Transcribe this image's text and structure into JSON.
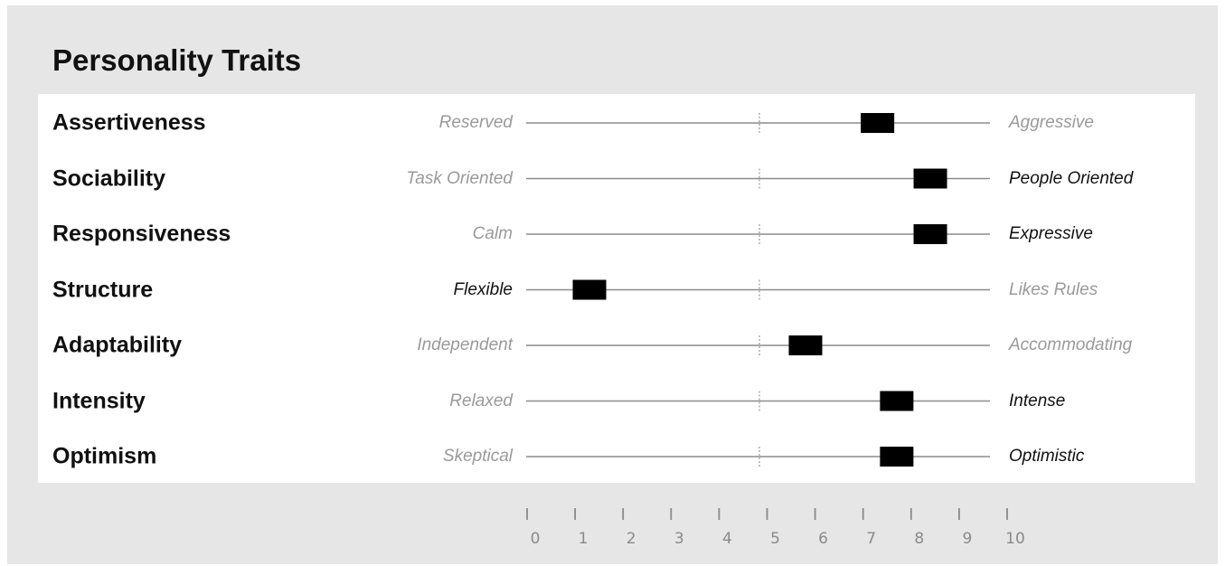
{
  "title": "Personality Traits",
  "chart_data": {
    "type": "bar",
    "title": "Personality Traits",
    "xlim": [
      0,
      10
    ],
    "midpoint": 5,
    "ticks": [
      "0",
      "1",
      "2",
      "3",
      "4",
      "5",
      "6",
      "7",
      "8",
      "9",
      "10"
    ],
    "traits": [
      {
        "name": "Assertiveness",
        "low": "Reserved",
        "high": "Aggressive",
        "value": 7.3,
        "emphasis": "low"
      },
      {
        "name": "Sociability",
        "low": "Task Oriented",
        "high": "People Oriented",
        "value": 8.4,
        "emphasis": "high"
      },
      {
        "name": "Responsiveness",
        "low": "Calm",
        "high": "Expressive",
        "value": 8.4,
        "emphasis": "high"
      },
      {
        "name": "Structure",
        "low": "Flexible",
        "high": "Likes Rules",
        "value": 1.3,
        "emphasis": "low"
      },
      {
        "name": "Adaptability",
        "low": "Independent",
        "high": "Accommodating",
        "value": 5.8,
        "emphasis": "none"
      },
      {
        "name": "Intensity",
        "low": "Relaxed",
        "high": "Intense",
        "value": 7.7,
        "emphasis": "high"
      },
      {
        "name": "Optimism",
        "low": "Skeptical",
        "high": "Optimistic",
        "value": 7.7,
        "emphasis": "high"
      }
    ]
  }
}
